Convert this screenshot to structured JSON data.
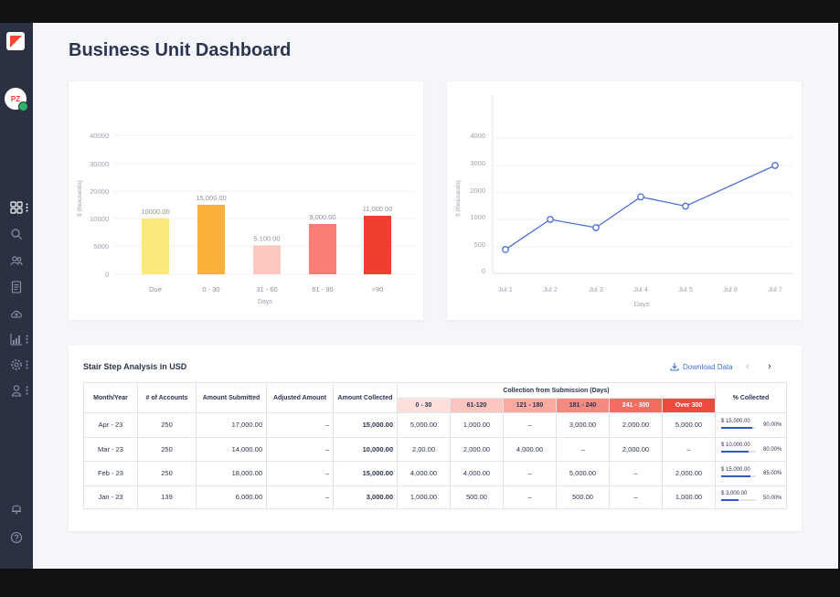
{
  "page": {
    "title": "Business Unit Dashboard"
  },
  "user": {
    "initials": "PZ"
  },
  "colors": {
    "accent": "#3f6fd8",
    "sidebar": "#2b3142",
    "brand": "#ef4a2e"
  },
  "sidebar": {
    "icons": [
      "dashboard-icon",
      "search-icon",
      "users-icon",
      "document-icon",
      "cloud-upload-icon",
      "analytics-icon",
      "settings-icon",
      "user-icon",
      "bell-icon",
      "help-icon"
    ]
  },
  "chart_data": [
    {
      "type": "bar",
      "title": "",
      "xlabel": "Days",
      "ylabel": "$ (thousands)",
      "ylim": [
        0,
        40000
      ],
      "yticks": [
        "40000",
        "30000",
        "20000",
        "10000",
        "5000",
        "0"
      ],
      "categories": [
        "Due",
        "0 - 30",
        "31 - 60",
        "61 - 90",
        ">90"
      ],
      "values": [
        10000,
        15000,
        5100,
        9000,
        11000
      ],
      "labels": [
        "10000.00",
        "15,000.00",
        "5,100.00",
        "9,000.00",
        "11,000.00"
      ],
      "colors": [
        "#fde87c",
        "#fbb03b",
        "#fdc8c0",
        "#f97c76",
        "#f03e2f"
      ]
    },
    {
      "type": "line",
      "title": "",
      "xlabel": "Days",
      "ylabel": "$ (thousands)",
      "ylim": [
        0,
        4000
      ],
      "yticks": [
        "4000",
        "3000",
        "2000",
        "1000",
        "500",
        "0"
      ],
      "x": [
        "Jul 1",
        "Jul 2",
        "Jul 3",
        "Jul 4",
        "Jul 5",
        "Jul 6",
        "Jul 7"
      ],
      "series": [
        {
          "values": [
            450,
            1000,
            850,
            1850,
            1500,
            null,
            3000
          ]
        }
      ],
      "color": "#4a6fd6"
    }
  ],
  "table": {
    "title": "Stair Step Analysis in USD",
    "download_label": "Download Data",
    "prev_symbol": "‹",
    "next_symbol": "›",
    "headers": {
      "month": "Month/Year",
      "accounts": "# of Accounts",
      "submitted": "Amount Submitted",
      "adjusted": "Adjusted Amount",
      "collected": "Amount Collected",
      "group": "Collection from Submission (Days)",
      "percent": "% Collected"
    },
    "buckets": [
      {
        "label": "0 - 30",
        "color": "#fde0dc"
      },
      {
        "label": "61-120",
        "color": "#fbc6bf"
      },
      {
        "label": "121 - 180",
        "color": "#f9aaa1"
      },
      {
        "label": "181 - 240",
        "color": "#f58a80"
      },
      {
        "label": "241 - 300",
        "color": "#f26d62"
      },
      {
        "label": "Over 300",
        "color": "#ef4a3f"
      }
    ],
    "rows": [
      {
        "month": "Apr - 23",
        "accounts": "250",
        "submitted": "17,000.00",
        "adjusted": "–",
        "collected": "15,000.00",
        "b": [
          "5,000.00",
          "1,000.00",
          "–",
          "3,000.00",
          "2,000.00",
          "5,000.00"
        ],
        "pc_amount": "$ 15,000.00",
        "pc_pct": "90.00%",
        "pc_fill": 0.9
      },
      {
        "month": "Mar - 23",
        "accounts": "250",
        "submitted": "14,000.00",
        "adjusted": "–",
        "collected": "10,000.00",
        "b": [
          "2,00.00",
          "2,000.00",
          "4,000.00",
          "–",
          "2,000.00",
          "–"
        ],
        "pc_amount": "$ 10,000.00",
        "pc_pct": "80.00%",
        "pc_fill": 0.8
      },
      {
        "month": "Feb - 23",
        "accounts": "250",
        "submitted": "18,000.00",
        "adjusted": "–",
        "collected": "15,000.00",
        "b": [
          "4,000.00",
          "4,000.00",
          "–",
          "5,000.00",
          "–",
          "2,000.00"
        ],
        "pc_amount": "$ 15,000.00",
        "pc_pct": "85.00%",
        "pc_fill": 0.85
      },
      {
        "month": "Jan - 23",
        "accounts": "139",
        "submitted": "6,000.00",
        "adjusted": "–",
        "collected": "3,000.00",
        "b": [
          "1,000.00",
          "500.00",
          "–",
          "500.00",
          "–",
          "1,000.00"
        ],
        "pc_amount": "$ 3,000.00",
        "pc_pct": "50.00%",
        "pc_fill": 0.5
      }
    ]
  }
}
